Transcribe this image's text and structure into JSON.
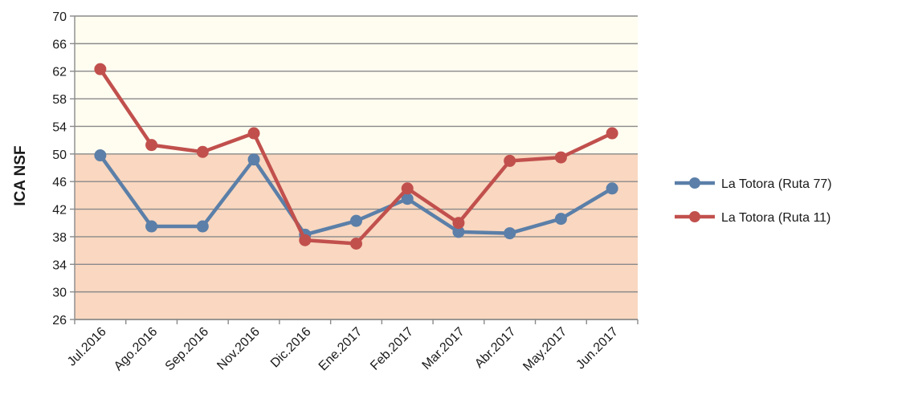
{
  "chart_data": {
    "type": "line",
    "title": "",
    "xlabel": "",
    "ylabel": "ICA NSF",
    "categories": [
      "Jul.2016",
      "Ago.2016",
      "Sep.2016",
      "Nov.2016",
      "Dic.2016",
      "Ene.2017",
      "Feb.2017",
      "Mar.2017",
      "Abr.2017",
      "May.2017",
      "Jun.2017"
    ],
    "ylim": [
      26,
      70
    ],
    "yticks": [
      26,
      30,
      34,
      38,
      42,
      46,
      50,
      54,
      58,
      62,
      66,
      70
    ],
    "grid": true,
    "legend_position": "right",
    "background_bands": [
      {
        "from": 26,
        "to": 50,
        "color": "#f9d7c0"
      },
      {
        "from": 50,
        "to": 70,
        "color": "#fffdf0"
      }
    ],
    "series": [
      {
        "name": "La Totora (Ruta 77)",
        "color": "#5b7fa8",
        "values": [
          49.8,
          39.5,
          39.5,
          49.2,
          38.3,
          40.3,
          43.5,
          38.7,
          38.5,
          40.6,
          45.0
        ]
      },
      {
        "name": "La Totora (Ruta 11)",
        "color": "#c1504d",
        "values": [
          62.3,
          51.3,
          50.3,
          53.0,
          37.5,
          37.0,
          45.0,
          40.0,
          49.0,
          49.5,
          53.0
        ]
      }
    ]
  }
}
